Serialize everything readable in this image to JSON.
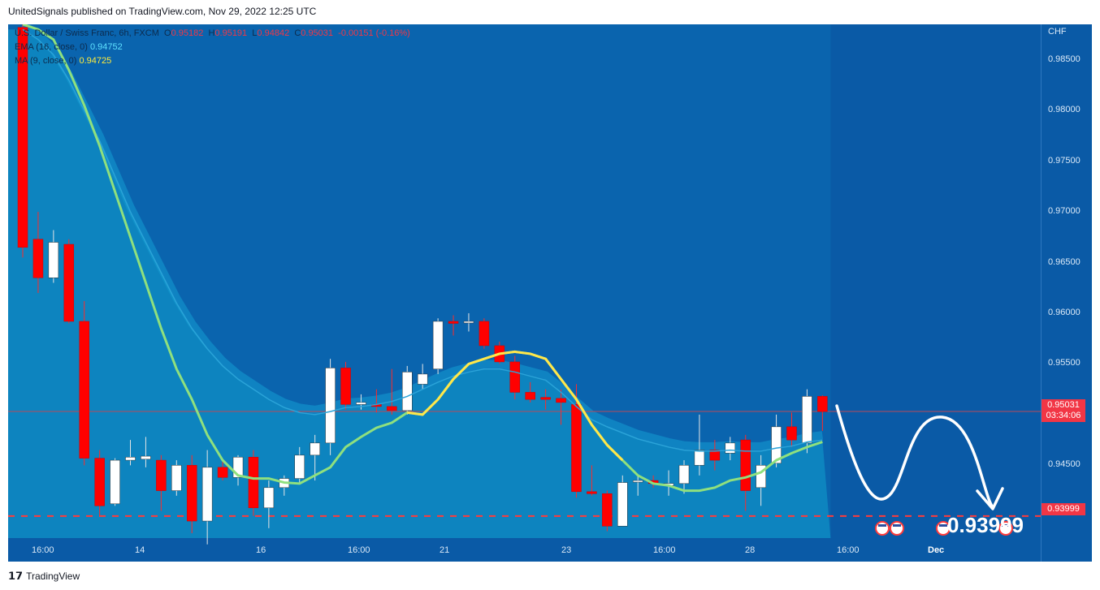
{
  "header": {
    "published": "UnitedSignals published on TradingView.com, Nov 29, 2022 12:25 UTC"
  },
  "legend": {
    "symbol": "U.S. Dollar / Swiss Franc, 6h, FXCM",
    "o_label": "O",
    "o_value": "0.95182",
    "h_label": "H",
    "h_value": "0.95191",
    "l_label": "L",
    "l_value": "0.94842",
    "c_label": "C",
    "c_value": "0.95031",
    "change": "-0.00151 (-0.16%)",
    "ema_label": "EMA (16, close, 0)",
    "ema_value": "0.94752",
    "ma_label": "MA (9, close, 0)",
    "ma_value": "0.94725"
  },
  "axis": {
    "currency": "CHF"
  },
  "current_price": {
    "value": "0.95031",
    "countdown": "03:34:06"
  },
  "target_box": "0.93999",
  "target_text": "0.93999",
  "footer": {
    "brand": "TradingView"
  },
  "colors": {
    "background": "#0a5aa6",
    "up": "#ffffff",
    "down": "#ff0000",
    "ema": "#8fe07e",
    "ma": "#ffe74a",
    "band_fill": "#0e86c0"
  },
  "chart_data": {
    "type": "candlestick",
    "title": "U.S. Dollar / Swiss Franc, 6h, FXCM",
    "y_axis_ticks": [
      0.985,
      0.98,
      0.975,
      0.97,
      0.965,
      0.96,
      0.955,
      0.95,
      0.945
    ],
    "y_axis_labels": [
      "0.98500",
      "0.98000",
      "0.97500",
      "0.97000",
      "0.96500",
      "0.96000",
      "0.95500",
      "0.95000",
      "0.94500"
    ],
    "ylim": [
      0.9355,
      0.9885
    ],
    "x_axis_labels": [
      "16:00",
      "14",
      "16",
      "16:00",
      "21",
      "23",
      "16:00",
      "28",
      "16:00",
      "Dec"
    ],
    "horizontal_line": 0.93999,
    "candles": [
      {
        "o": 0.9882,
        "h": 0.989,
        "l": 0.9655,
        "c": 0.9665
      },
      {
        "o": 0.9673,
        "h": 0.97,
        "l": 0.962,
        "c": 0.9635
      },
      {
        "o": 0.9635,
        "h": 0.9682,
        "l": 0.963,
        "c": 0.967
      },
      {
        "o": 0.9668,
        "h": 0.9673,
        "l": 0.959,
        "c": 0.9592
      },
      {
        "o": 0.9592,
        "h": 0.9612,
        "l": 0.945,
        "c": 0.9457
      },
      {
        "o": 0.9457,
        "h": 0.9465,
        "l": 0.94,
        "c": 0.941
      },
      {
        "o": 0.9412,
        "h": 0.9457,
        "l": 0.941,
        "c": 0.9455
      },
      {
        "o": 0.9455,
        "h": 0.9475,
        "l": 0.945,
        "c": 0.9458
      },
      {
        "o": 0.9456,
        "h": 0.9478,
        "l": 0.9448,
        "c": 0.9459
      },
      {
        "o": 0.9455,
        "h": 0.946,
        "l": 0.9405,
        "c": 0.9425
      },
      {
        "o": 0.9425,
        "h": 0.9455,
        "l": 0.942,
        "c": 0.945
      },
      {
        "o": 0.945,
        "h": 0.946,
        "l": 0.9383,
        "c": 0.9395
      },
      {
        "o": 0.9395,
        "h": 0.9465,
        "l": 0.9372,
        "c": 0.9448
      },
      {
        "o": 0.9448,
        "h": 0.9455,
        "l": 0.9435,
        "c": 0.9438
      },
      {
        "o": 0.9438,
        "h": 0.946,
        "l": 0.943,
        "c": 0.9458
      },
      {
        "o": 0.9458,
        "h": 0.9465,
        "l": 0.94,
        "c": 0.9408
      },
      {
        "o": 0.9408,
        "h": 0.9435,
        "l": 0.9388,
        "c": 0.9428
      },
      {
        "o": 0.9428,
        "h": 0.944,
        "l": 0.942,
        "c": 0.9437
      },
      {
        "o": 0.9437,
        "h": 0.9468,
        "l": 0.9432,
        "c": 0.946
      },
      {
        "o": 0.946,
        "h": 0.948,
        "l": 0.9435,
        "c": 0.9472
      },
      {
        "o": 0.9472,
        "h": 0.9555,
        "l": 0.946,
        "c": 0.9546
      },
      {
        "o": 0.9546,
        "h": 0.9552,
        "l": 0.9505,
        "c": 0.951
      },
      {
        "o": 0.951,
        "h": 0.952,
        "l": 0.9505,
        "c": 0.9512
      },
      {
        "o": 0.951,
        "h": 0.9525,
        "l": 0.9502,
        "c": 0.9508
      },
      {
        "o": 0.9508,
        "h": 0.9545,
        "l": 0.95,
        "c": 0.9504
      },
      {
        "o": 0.9504,
        "h": 0.9548,
        "l": 0.95,
        "c": 0.9542
      },
      {
        "o": 0.953,
        "h": 0.955,
        "l": 0.9525,
        "c": 0.954
      },
      {
        "o": 0.9545,
        "h": 0.9595,
        "l": 0.954,
        "c": 0.9592
      },
      {
        "o": 0.9592,
        "h": 0.9598,
        "l": 0.9578,
        "c": 0.959
      },
      {
        "o": 0.9591,
        "h": 0.96,
        "l": 0.9582,
        "c": 0.9592
      },
      {
        "o": 0.9592,
        "h": 0.9595,
        "l": 0.9565,
        "c": 0.9568
      },
      {
        "o": 0.9568,
        "h": 0.9572,
        "l": 0.955,
        "c": 0.9552
      },
      {
        "o": 0.9552,
        "h": 0.9558,
        "l": 0.9515,
        "c": 0.9522
      },
      {
        "o": 0.9522,
        "h": 0.9532,
        "l": 0.9512,
        "c": 0.9515
      },
      {
        "o": 0.9517,
        "h": 0.9525,
        "l": 0.9505,
        "c": 0.9515
      },
      {
        "o": 0.9516,
        "h": 0.9525,
        "l": 0.949,
        "c": 0.9512
      },
      {
        "o": 0.951,
        "h": 0.953,
        "l": 0.9418,
        "c": 0.9424
      },
      {
        "o": 0.9424,
        "h": 0.945,
        "l": 0.942,
        "c": 0.9422
      },
      {
        "o": 0.9422,
        "h": 0.9425,
        "l": 0.9385,
        "c": 0.939
      },
      {
        "o": 0.939,
        "h": 0.944,
        "l": 0.939,
        "c": 0.9433
      },
      {
        "o": 0.9434,
        "h": 0.944,
        "l": 0.942,
        "c": 0.9435
      },
      {
        "o": 0.9435,
        "h": 0.944,
        "l": 0.9428,
        "c": 0.9432
      },
      {
        "o": 0.943,
        "h": 0.9445,
        "l": 0.942,
        "c": 0.9432
      },
      {
        "o": 0.9432,
        "h": 0.9455,
        "l": 0.9422,
        "c": 0.945
      },
      {
        "o": 0.945,
        "h": 0.95,
        "l": 0.944,
        "c": 0.9465
      },
      {
        "o": 0.9465,
        "h": 0.9475,
        "l": 0.9445,
        "c": 0.9455
      },
      {
        "o": 0.9462,
        "h": 0.9478,
        "l": 0.9455,
        "c": 0.9472
      },
      {
        "o": 0.9475,
        "h": 0.948,
        "l": 0.9405,
        "c": 0.9425
      },
      {
        "o": 0.9428,
        "h": 0.946,
        "l": 0.941,
        "c": 0.945
      },
      {
        "o": 0.9452,
        "h": 0.95,
        "l": 0.9448,
        "c": 0.9488
      },
      {
        "o": 0.9488,
        "h": 0.9502,
        "l": 0.9468,
        "c": 0.9475
      },
      {
        "o": 0.9472,
        "h": 0.9525,
        "l": 0.9462,
        "c": 0.9518
      },
      {
        "o": 0.9518,
        "h": 0.9519,
        "l": 0.9484,
        "c": 0.9503
      }
    ],
    "ma_series": [
      0.9885,
      0.988,
      0.987,
      0.984,
      0.9805,
      0.9765,
      0.972,
      0.9675,
      0.963,
      0.9585,
      0.9545,
      0.9515,
      0.948,
      0.9455,
      0.944,
      0.9437,
      0.9437,
      0.9433,
      0.9432,
      0.944,
      0.9448,
      0.9468,
      0.9478,
      0.9487,
      0.9492,
      0.9502,
      0.95,
      0.9515,
      0.9535,
      0.955,
      0.9555,
      0.956,
      0.9562,
      0.956,
      0.9555,
      0.9535,
      0.9515,
      0.949,
      0.947,
      0.9455,
      0.944,
      0.9432,
      0.943,
      0.9425,
      0.9425,
      0.9428,
      0.9435,
      0.9438,
      0.9443,
      0.9455,
      0.9462,
      0.9468,
      0.9473
    ],
    "ema_series": [
      0.988,
      0.987,
      0.9855,
      0.983,
      0.98,
      0.977,
      0.9735,
      0.97,
      0.967,
      0.964,
      0.961,
      0.9585,
      0.9565,
      0.9548,
      0.9535,
      0.9525,
      0.9515,
      0.9507,
      0.9502,
      0.95,
      0.9503,
      0.9507,
      0.9508,
      0.951,
      0.9513,
      0.9518,
      0.9525,
      0.9532,
      0.9538,
      0.9542,
      0.9545,
      0.9545,
      0.9542,
      0.9538,
      0.9534,
      0.9522,
      0.9508,
      0.9495,
      0.9488,
      0.9482,
      0.9476,
      0.9472,
      0.9468,
      0.9465,
      0.9464,
      0.9464,
      0.9465,
      0.9464,
      0.9464,
      0.9467,
      0.9469,
      0.9473,
      0.9475
    ]
  }
}
